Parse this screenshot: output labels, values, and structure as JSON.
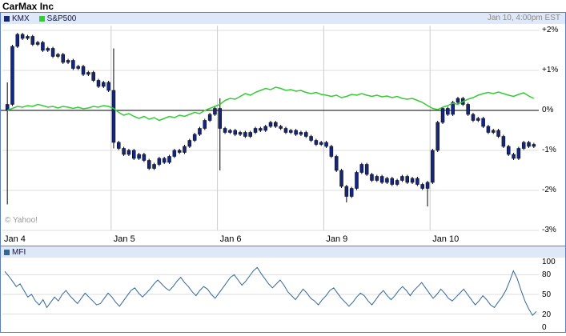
{
  "header": {
    "title": "CarMax Inc"
  },
  "colors": {
    "panel_border": "#5B7FC4",
    "legend_bg": "#DEE8F8",
    "kmx": "#15267D",
    "sp500": "#33CC33",
    "mfi": "#336699",
    "grid": "#DDDDDD",
    "day_separator": "#CCCCCC",
    "zero_line": "#000000",
    "wick": "#000000"
  },
  "main_chart": {
    "legend": [
      {
        "label": "KMX",
        "color": "#15267D"
      },
      {
        "label": "S&P500",
        "color": "#33CC33"
      }
    ],
    "timestamp": "Jan 10, 4:00pm EST",
    "watermark": "© Yahoo!"
  },
  "mfi_chart": {
    "legend": [
      {
        "label": "MFI",
        "color": "#336699"
      }
    ]
  },
  "chart_data": [
    {
      "type": "candlestick",
      "title": "CarMax Inc",
      "ylabel": "% change",
      "ylim": [
        -3,
        2
      ],
      "yticks": [
        {
          "label": "+2%",
          "value": 2
        },
        {
          "label": "+1%",
          "value": 1
        },
        {
          "label": "0%",
          "value": 0
        },
        {
          "label": "-1%",
          "value": -1
        },
        {
          "label": "-2%",
          "value": -2
        },
        {
          "label": "-3%",
          "value": -3
        }
      ],
      "x_labels": [
        "Jan 4",
        "Jan 5",
        "Jan 6",
        "Jan 9",
        "Jan 10"
      ],
      "day_start_indices": [
        0,
        21,
        42,
        63,
        84
      ],
      "first_open": 0.0,
      "wicks": [
        {
          "i": 0,
          "high": 0.7,
          "low": -2.35
        },
        {
          "i": 21,
          "high": 1.55,
          "low": -0.95
        },
        {
          "i": 42,
          "high": 0.3,
          "low": -1.5
        },
        {
          "i": 67,
          "low": -2.3
        },
        {
          "i": 83,
          "low": -2.4
        }
      ],
      "series": [
        {
          "name": "KMX",
          "type": "candlestick",
          "color": "#15267D",
          "values": [
            0.15,
            1.6,
            1.9,
            1.8,
            1.85,
            1.65,
            1.7,
            1.5,
            1.55,
            1.35,
            1.4,
            1.2,
            1.25,
            1.05,
            1.1,
            0.9,
            0.95,
            0.75,
            0.6,
            0.7,
            0.5,
            -0.8,
            -0.95,
            -1.1,
            -1.0,
            -1.2,
            -1.1,
            -1.25,
            -1.45,
            -1.35,
            -1.2,
            -1.3,
            -1.15,
            -1.0,
            -1.05,
            -0.9,
            -0.75,
            -0.6,
            -0.45,
            -0.25,
            -0.1,
            0.05,
            -0.45,
            -0.55,
            -0.5,
            -0.6,
            -0.55,
            -0.65,
            -0.55,
            -0.45,
            -0.5,
            -0.4,
            -0.3,
            -0.4,
            -0.45,
            -0.55,
            -0.5,
            -0.6,
            -0.55,
            -0.65,
            -0.75,
            -0.85,
            -0.8,
            -0.9,
            -1.15,
            -1.5,
            -1.9,
            -2.15,
            -1.95,
            -1.55,
            -1.35,
            -1.6,
            -1.75,
            -1.65,
            -1.8,
            -1.7,
            -1.85,
            -1.75,
            -1.65,
            -1.8,
            -1.7,
            -1.85,
            -1.95,
            -1.8,
            -1.0,
            -0.3,
            0.05,
            -0.1,
            0.2,
            0.3,
            0.15,
            -0.1,
            -0.25,
            -0.2,
            -0.4,
            -0.55,
            -0.5,
            -0.65,
            -0.9,
            -1.1,
            -1.2,
            -0.95,
            -0.8,
            -0.9,
            -0.85
          ]
        },
        {
          "name": "S&P500",
          "type": "line",
          "color": "#33CC33",
          "values": [
            0.0,
            0.05,
            0.1,
            0.08,
            0.12,
            0.1,
            0.15,
            0.12,
            0.08,
            0.1,
            0.06,
            0.1,
            0.08,
            0.05,
            0.08,
            0.04,
            0.06,
            0.1,
            0.08,
            0.12,
            0.1,
            0.05,
            -0.05,
            -0.12,
            -0.08,
            -0.15,
            -0.2,
            -0.15,
            -0.22,
            -0.18,
            -0.25,
            -0.2,
            -0.15,
            -0.18,
            -0.12,
            -0.15,
            -0.1,
            -0.05,
            -0.08,
            0.0,
            0.05,
            0.1,
            0.15,
            0.25,
            0.3,
            0.28,
            0.35,
            0.42,
            0.38,
            0.45,
            0.5,
            0.55,
            0.52,
            0.58,
            0.55,
            0.5,
            0.52,
            0.48,
            0.5,
            0.45,
            0.42,
            0.45,
            0.4,
            0.38,
            0.35,
            0.38,
            0.32,
            0.35,
            0.4,
            0.38,
            0.42,
            0.38,
            0.35,
            0.38,
            0.34,
            0.36,
            0.32,
            0.35,
            0.3,
            0.28,
            0.3,
            0.25,
            0.2,
            0.12,
            0.05,
            0.02,
            0.08,
            0.12,
            0.18,
            0.15,
            0.22,
            0.28,
            0.32,
            0.38,
            0.42,
            0.45,
            0.42,
            0.46,
            0.42,
            0.38,
            0.35,
            0.4,
            0.44,
            0.36,
            0.3
          ]
        }
      ]
    },
    {
      "type": "line",
      "title": "MFI",
      "ylim": [
        0,
        100
      ],
      "yticks": [
        100,
        80,
        50,
        20,
        0
      ],
      "grid_values": [
        80,
        50,
        20
      ],
      "series": [
        {
          "name": "MFI",
          "color": "#336699",
          "values": [
            85,
            78,
            70,
            62,
            66,
            56,
            46,
            50,
            40,
            34,
            42,
            30,
            38,
            46,
            40,
            50,
            56,
            48,
            42,
            36,
            44,
            52,
            46,
            40,
            34,
            36,
            44,
            52,
            46,
            38,
            32,
            40,
            48,
            56,
            60,
            52,
            46,
            52,
            58,
            66,
            72,
            66,
            60,
            56,
            62,
            70,
            76,
            68,
            62,
            54,
            48,
            56,
            62,
            58,
            50,
            44,
            52,
            60,
            68,
            76,
            80,
            72,
            64,
            70,
            78,
            86,
            91,
            82,
            74,
            66,
            60,
            66,
            72,
            64,
            54,
            48,
            42,
            50,
            58,
            52,
            44,
            40,
            34,
            42,
            48,
            56,
            60,
            52,
            44,
            38,
            32,
            38,
            46,
            52,
            48,
            40,
            34,
            42,
            50,
            56,
            48,
            42,
            48,
            56,
            62,
            56,
            48,
            56,
            62,
            68,
            60,
            52,
            44,
            50,
            58,
            52,
            44,
            40,
            46,
            52,
            58,
            50,
            42,
            34,
            40,
            48,
            42,
            34,
            30,
            38,
            46,
            56,
            70,
            86,
            74,
            56,
            40,
            28,
            18,
            24
          ]
        }
      ]
    }
  ]
}
